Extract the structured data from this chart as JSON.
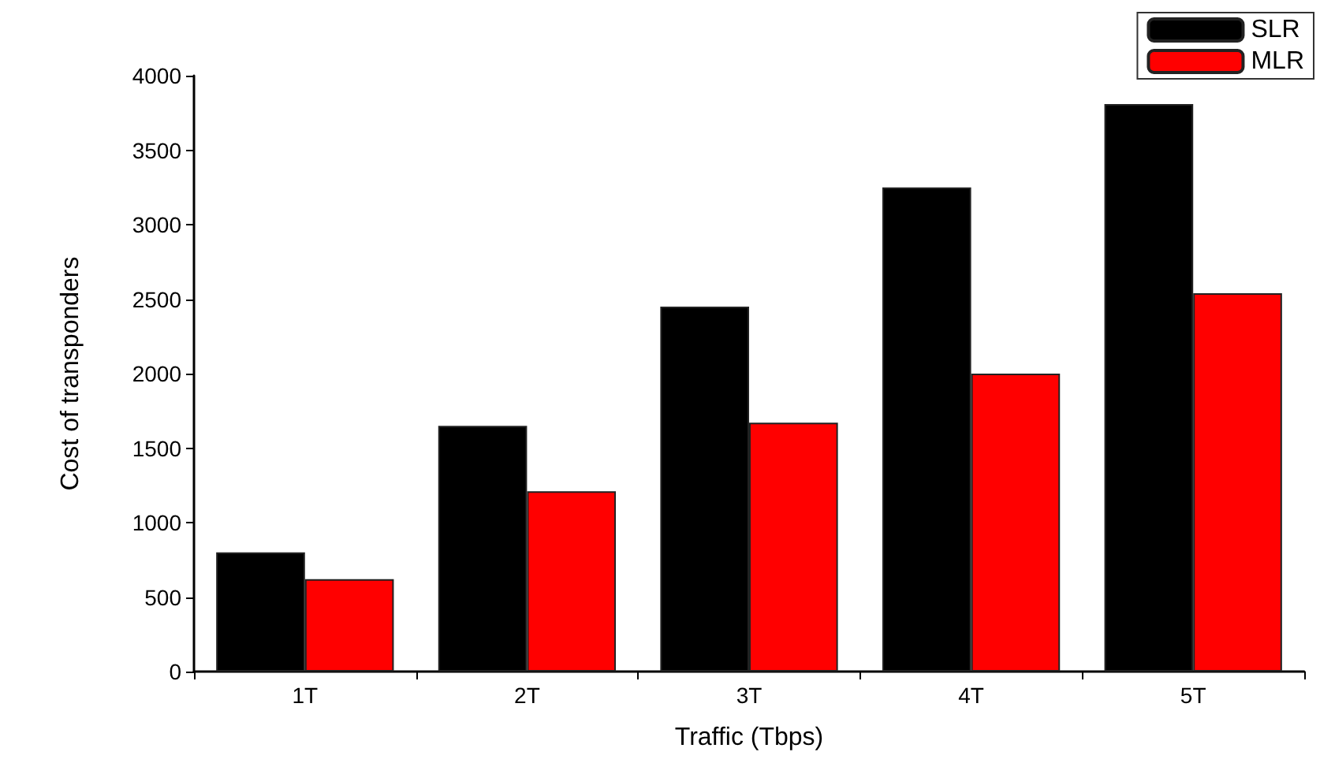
{
  "chart_data": {
    "type": "bar",
    "xlabel": "Traffic (Tbps)",
    "ylabel": "Cost of transponders",
    "categories": [
      "1T",
      "2T",
      "3T",
      "4T",
      "5T"
    ],
    "series": [
      {
        "name": "SLR",
        "color": "#000000",
        "values": [
          800,
          1650,
          2450,
          3250,
          3810
        ]
      },
      {
        "name": "MLR",
        "color": "#ff0000",
        "values": [
          620,
          1210,
          1670,
          2000,
          2540
        ]
      }
    ],
    "ylim": [
      0,
      4000
    ],
    "yticks": [
      0,
      500,
      1000,
      1500,
      2000,
      2500,
      3000,
      3500,
      4000
    ],
    "grid": false,
    "legend": "top right"
  }
}
